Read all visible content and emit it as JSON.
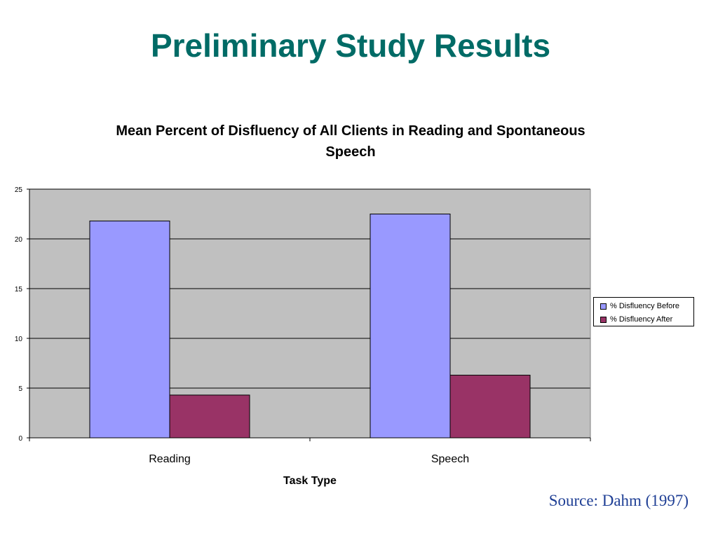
{
  "slide": {
    "title": "Preliminary Study Results",
    "source": "Source: Dahm (1997)"
  },
  "colors": {
    "title": "#006b66",
    "plot_background": "#c0c0c0",
    "before": "#9999ff",
    "after": "#993366",
    "source": "#1f3f95"
  },
  "chart_data": {
    "type": "bar",
    "title": "Mean Percent of Disfluency of All Clients in Reading and Spontaneous Speech",
    "xlabel": "Task Type",
    "ylabel": "",
    "categories": [
      "Reading",
      "Speech"
    ],
    "series": [
      {
        "name": "% Disfluency Before",
        "values": [
          21.8,
          22.5
        ],
        "color": "#9999ff"
      },
      {
        "name": "% Disfluency After",
        "values": [
          4.3,
          6.3
        ],
        "color": "#993366"
      }
    ],
    "ylim": [
      0,
      25
    ],
    "yticks": [
      0,
      5,
      10,
      15,
      20,
      25
    ],
    "grid": true,
    "legend": "right"
  }
}
